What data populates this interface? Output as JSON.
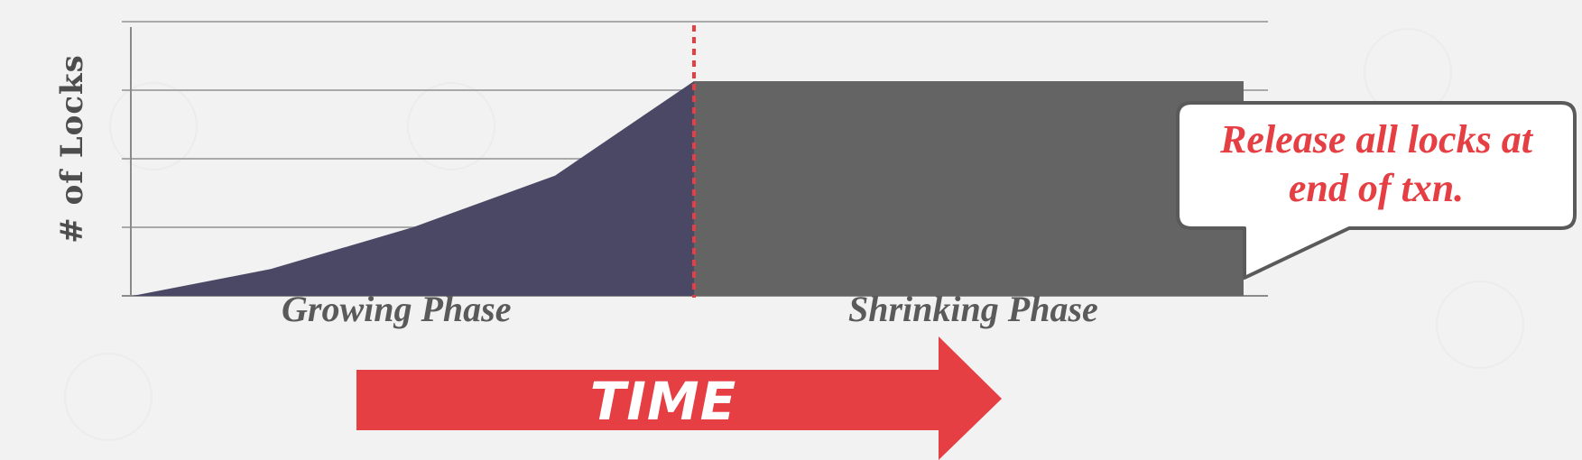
{
  "diagram": {
    "ylabel": "# of Locks",
    "phases": {
      "growing": "Growing Phase",
      "shrinking": "Shrinking Phase"
    },
    "arrow_label": "TIME",
    "callout": {
      "line1": "Release all locks at",
      "line2": "end of txn."
    },
    "colors": {
      "growing_fill": "#4a4864",
      "shrinking_fill": "#646464",
      "accent_red": "#e53e43",
      "grid": "#a9a9a9",
      "background": "#f2f2f2"
    }
  },
  "chart_data": {
    "type": "area",
    "xlabel": "",
    "ylabel": "# of Locks",
    "y_gridlines": 4,
    "grid": true,
    "series": [
      {
        "values": [
          0,
          0.125,
          0.32,
          0.56,
          1.0
        ]
      }
    ],
    "shrinking_level": 1.0
  }
}
